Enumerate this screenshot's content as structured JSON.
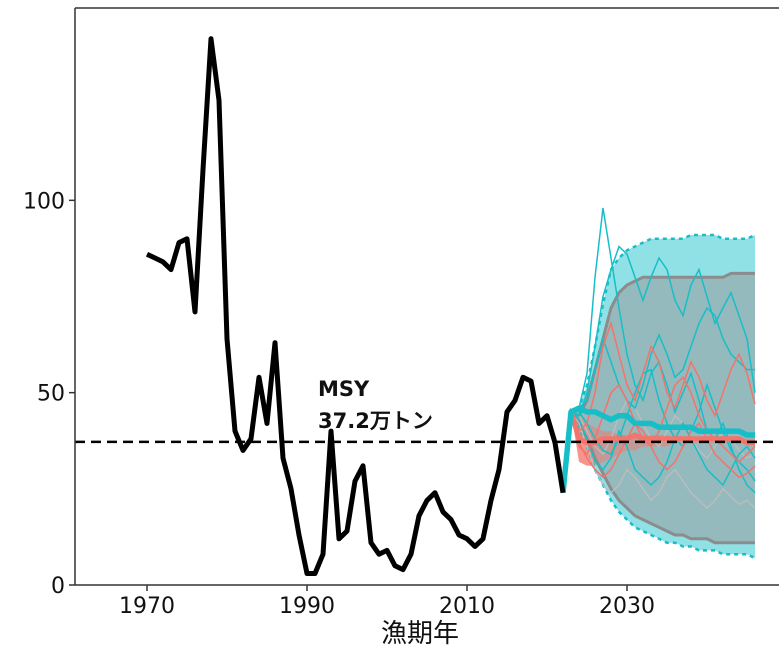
{
  "chart_data": {
    "type": "line",
    "title": "",
    "xlabel": "漁期年",
    "ylabel": "",
    "xlim": [
      1961,
      2049
    ],
    "ylim": [
      0,
      150
    ],
    "x_ticks": [
      1970,
      1990,
      2010,
      2030
    ],
    "y_ticks": [
      0,
      50,
      100
    ],
    "grid": false,
    "msy": {
      "value": 37.2,
      "label_line1": "MSY",
      "label_line2": "37.2万トン"
    },
    "historical": {
      "x": [
        1970,
        1971,
        1972,
        1973,
        1974,
        1975,
        1976,
        1977,
        1978,
        1979,
        1980,
        1981,
        1982,
        1983,
        1984,
        1985,
        1986,
        1987,
        1988,
        1989,
        1990,
        1991,
        1992,
        1993,
        1994,
        1995,
        1996,
        1997,
        1998,
        1999,
        2000,
        2001,
        2002,
        2003,
        2004,
        2005,
        2006,
        2007,
        2008,
        2009,
        2010,
        2011,
        2012,
        2013,
        2014,
        2015,
        2016,
        2017,
        2018,
        2019,
        2020,
        2021,
        2022
      ],
      "y": [
        86,
        85,
        84,
        82,
        89,
        90,
        71,
        108,
        142,
        126,
        64,
        40,
        35,
        38,
        54,
        42,
        63,
        33,
        25,
        13,
        3,
        3,
        8,
        40,
        12,
        14,
        27,
        31,
        11,
        8,
        9,
        5,
        4,
        8,
        18,
        22,
        24,
        19,
        17,
        13,
        12,
        10,
        12,
        22,
        30,
        45,
        48,
        54,
        53,
        42,
        44,
        37,
        24
      ]
    },
    "cyan_band": {
      "x": [
        2022,
        2023,
        2024,
        2025,
        2026,
        2027,
        2028,
        2029,
        2030,
        2031,
        2032,
        2033,
        2034,
        2035,
        2036,
        2037,
        2038,
        2039,
        2040,
        2041,
        2042,
        2043,
        2044,
        2045,
        2046
      ],
      "lower": [
        24,
        45,
        41,
        36,
        30,
        26,
        22,
        19,
        17,
        15,
        14,
        13,
        12,
        11,
        11,
        10,
        10,
        9,
        9,
        9,
        8,
        8,
        8,
        8,
        7
      ],
      "upper": [
        24,
        45,
        46,
        52,
        62,
        73,
        82,
        85,
        87,
        88,
        89,
        90,
        90,
        90,
        90,
        90,
        91,
        91,
        91,
        91,
        90,
        90,
        90,
        90,
        91
      ]
    },
    "red_band": {
      "x": [
        2022,
        2023,
        2024,
        2025,
        2026,
        2027,
        2028,
        2029,
        2030,
        2031,
        2032,
        2033,
        2034,
        2035,
        2036,
        2037,
        2038,
        2039,
        2040,
        2041,
        2042,
        2043,
        2044,
        2045,
        2046
      ],
      "lower": [
        24,
        45,
        32,
        31,
        31,
        32,
        33,
        34,
        35,
        35,
        36,
        36,
        36,
        36,
        37,
        37,
        37,
        37,
        37,
        37,
        37,
        37,
        37,
        37,
        37
      ],
      "upper": [
        24,
        45,
        44,
        42,
        41,
        40,
        40,
        39,
        39,
        39,
        39,
        39,
        39,
        39,
        38,
        38,
        38,
        38,
        38,
        38,
        38,
        38,
        38,
        38,
        38
      ]
    },
    "grey_band": {
      "x": [
        2022,
        2023,
        2024,
        2025,
        2026,
        2027,
        2028,
        2029,
        2030,
        2031,
        2032,
        2033,
        2034,
        2035,
        2036,
        2037,
        2038,
        2039,
        2040,
        2041,
        2042,
        2043,
        2044,
        2045,
        2046
      ],
      "lower": [
        24,
        45,
        42,
        38,
        33,
        29,
        25,
        22,
        20,
        18,
        17,
        16,
        15,
        14,
        13,
        13,
        12,
        12,
        12,
        11,
        11,
        11,
        11,
        11,
        11
      ],
      "upper": [
        24,
        45,
        44,
        48,
        56,
        64,
        72,
        76,
        78,
        79,
        80,
        80,
        80,
        80,
        80,
        80,
        80,
        80,
        80,
        80,
        80,
        81,
        81,
        81,
        81
      ]
    },
    "cyan_median": {
      "x": [
        2022,
        2023,
        2024,
        2025,
        2026,
        2027,
        2028,
        2029,
        2030,
        2031,
        2032,
        2033,
        2034,
        2035,
        2036,
        2037,
        2038,
        2039,
        2040,
        2041,
        2042,
        2043,
        2044,
        2045,
        2046
      ],
      "y": [
        24,
        45,
        46,
        45,
        45,
        44,
        43,
        44,
        44,
        42,
        42,
        42,
        41,
        41,
        41,
        41,
        41,
        40,
        40,
        40,
        40,
        40,
        40,
        39,
        39
      ]
    },
    "red_median": {
      "x": [
        2023,
        2024,
        2025,
        2026,
        2027,
        2028,
        2029,
        2030,
        2031,
        2032,
        2033,
        2034,
        2035,
        2036,
        2037,
        2038,
        2039,
        2040,
        2041,
        2042,
        2043,
        2044,
        2045,
        2046
      ],
      "y": [
        45,
        38,
        37,
        37,
        38,
        38,
        38,
        38,
        39,
        38,
        38,
        38,
        38,
        38,
        38,
        38,
        38,
        38,
        38,
        38,
        38,
        38,
        37,
        37
      ]
    },
    "cyan_traces": [
      {
        "x": [
          2023,
          2024,
          2025,
          2026,
          2027,
          2028,
          2029,
          2030,
          2031,
          2032,
          2033,
          2034,
          2035,
          2036,
          2037,
          2038,
          2039,
          2040,
          2041,
          2042,
          2043,
          2044,
          2045,
          2046
        ],
        "y": [
          45,
          46,
          55,
          80,
          98,
          85,
          72,
          60,
          52,
          48,
          55,
          58,
          52,
          45,
          50,
          55,
          48,
          40,
          38,
          42,
          36,
          30,
          26,
          24
        ]
      },
      {
        "x": [
          2023,
          2024,
          2025,
          2026,
          2027,
          2028,
          2029,
          2030,
          2031,
          2032,
          2033,
          2034,
          2035,
          2036,
          2037,
          2038,
          2039,
          2040,
          2041,
          2042,
          2043,
          2044,
          2045,
          2046
        ],
        "y": [
          45,
          44,
          50,
          62,
          75,
          82,
          88,
          86,
          80,
          74,
          80,
          85,
          82,
          74,
          70,
          78,
          82,
          75,
          68,
          72,
          76,
          70,
          64,
          50
        ]
      },
      {
        "x": [
          2023,
          2024,
          2025,
          2026,
          2027,
          2028,
          2029,
          2030,
          2031,
          2032,
          2033,
          2034,
          2035,
          2036,
          2037,
          2038,
          2039,
          2040,
          2041,
          2042,
          2043,
          2044,
          2045,
          2046
        ],
        "y": [
          45,
          45,
          42,
          38,
          35,
          34,
          38,
          44,
          50,
          55,
          56,
          48,
          42,
          38,
          36,
          40,
          45,
          52,
          46,
          40,
          35,
          32,
          30,
          27
        ]
      },
      {
        "x": [
          2023,
          2024,
          2025,
          2026,
          2027,
          2028,
          2029,
          2030,
          2031,
          2032,
          2033,
          2034,
          2035,
          2036,
          2037,
          2038,
          2039,
          2040,
          2041,
          2042,
          2043,
          2044,
          2045,
          2046
        ],
        "y": [
          45,
          43,
          38,
          32,
          30,
          33,
          40,
          36,
          30,
          28,
          26,
          28,
          32,
          38,
          42,
          38,
          34,
          30,
          28,
          26,
          30,
          34,
          36,
          33
        ]
      },
      {
        "x": [
          2023,
          2024,
          2025,
          2026,
          2027,
          2028,
          2029,
          2030,
          2031,
          2032,
          2033,
          2034,
          2035,
          2036,
          2037,
          2038,
          2039,
          2040,
          2041,
          2042,
          2043,
          2044,
          2045,
          2046
        ],
        "y": [
          45,
          46,
          48,
          56,
          64,
          58,
          52,
          48,
          46,
          52,
          60,
          65,
          60,
          54,
          56,
          62,
          68,
          72,
          70,
          64,
          60,
          58,
          56,
          56
        ]
      }
    ],
    "red_traces": [
      {
        "x": [
          2023,
          2024,
          2025,
          2026,
          2027,
          2028,
          2029,
          2030,
          2031,
          2032,
          2033,
          2034,
          2035,
          2036,
          2037,
          2038,
          2039,
          2040,
          2041,
          2042,
          2043,
          2044,
          2045,
          2046
        ],
        "y": [
          45,
          40,
          42,
          50,
          62,
          68,
          60,
          52,
          48,
          55,
          62,
          58,
          50,
          46,
          52,
          58,
          54,
          48,
          44,
          50,
          56,
          60,
          55,
          47
        ]
      },
      {
        "x": [
          2023,
          2024,
          2025,
          2026,
          2027,
          2028,
          2029,
          2030,
          2031,
          2032,
          2033,
          2034,
          2035,
          2036,
          2037,
          2038,
          2039,
          2040,
          2041,
          2042,
          2043,
          2044,
          2045,
          2046
        ],
        "y": [
          45,
          36,
          34,
          38,
          44,
          50,
          52,
          48,
          42,
          38,
          36,
          40,
          46,
          52,
          54,
          50,
          44,
          40,
          38,
          36,
          34,
          32,
          34,
          36
        ]
      },
      {
        "x": [
          2023,
          2024,
          2025,
          2026,
          2027,
          2028,
          2029,
          2030,
          2031,
          2032,
          2033,
          2034,
          2035,
          2036,
          2037,
          2038,
          2039,
          2040,
          2041,
          2042,
          2043,
          2044,
          2045,
          2046
        ],
        "y": [
          45,
          37,
          33,
          30,
          28,
          30,
          34,
          38,
          42,
          40,
          36,
          32,
          30,
          32,
          36,
          40,
          42,
          38,
          34,
          32,
          30,
          28,
          29,
          31
        ]
      }
    ],
    "grey_traces": [
      {
        "x": [
          2023,
          2024,
          2025,
          2026,
          2027,
          2028,
          2029,
          2030,
          2031,
          2032,
          2033,
          2034,
          2035,
          2036,
          2037,
          2038,
          2039,
          2040,
          2041,
          2042,
          2043,
          2044,
          2045,
          2046
        ],
        "y": [
          45,
          42,
          36,
          30,
          26,
          24,
          26,
          30,
          28,
          25,
          22,
          24,
          28,
          30,
          27,
          24,
          22,
          20,
          22,
          25,
          23,
          21,
          22,
          20
        ]
      },
      {
        "x": [
          2023,
          2024,
          2025,
          2026,
          2027,
          2028,
          2029,
          2030,
          2031,
          2032,
          2033,
          2034,
          2035,
          2036,
          2037,
          2038,
          2039,
          2040,
          2041,
          2042,
          2043,
          2044,
          2045,
          2046
        ],
        "y": [
          45,
          44,
          40,
          36,
          34,
          38,
          44,
          48,
          46,
          42,
          38,
          36,
          40,
          44,
          42,
          38,
          35,
          33,
          36,
          40,
          38,
          35,
          33,
          34
        ]
      }
    ],
    "colors": {
      "historical": "#000000",
      "cyan": "#17BEC8",
      "cyan_fill": "#8FE1E6",
      "red": "#F2746B",
      "red_fill": "#F7948C",
      "grey_fill": "#9A9A9A",
      "grey_line": "#8C8C8C",
      "msy_line": "#000000",
      "axis": "#333333"
    }
  }
}
